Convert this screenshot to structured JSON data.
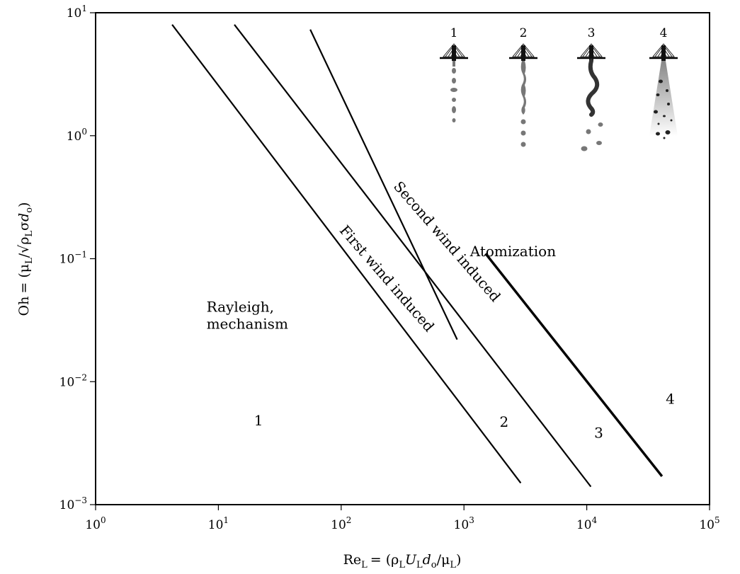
{
  "chart_data": {
    "type": "line",
    "x_scale": "log",
    "y_scale": "log",
    "xlim": [
      1,
      100000
    ],
    "ylim": [
      0.001,
      10
    ],
    "grid": false,
    "xlabel": {
      "lhs": "Re",
      "lhs_sub": "L",
      "eq": "= (",
      "rho": "ρ",
      "rho_sub": "L",
      "U": "U",
      "U_sub": "L",
      "d": "d",
      "d_sub": "o",
      "slash": "/",
      "mu": "μ",
      "mu_sub": "L",
      "close": ")"
    },
    "ylabel": {
      "lhs": "Oh",
      "eq": "= (",
      "mu": "μ",
      "mu_sub": "L",
      "slash": "/",
      "sqrt": "√",
      "rho": "ρ",
      "rho_sub": "L",
      "sigma": "σ",
      "d": "d",
      "d_sub": "o",
      "close": ")"
    },
    "x_ticks": [
      {
        "value": 1,
        "base": "10",
        "exp": "0"
      },
      {
        "value": 10,
        "base": "10",
        "exp": "1"
      },
      {
        "value": 100,
        "base": "10",
        "exp": "2"
      },
      {
        "value": 1000,
        "base": "10",
        "exp": "3"
      },
      {
        "value": 10000,
        "base": "10",
        "exp": "4"
      },
      {
        "value": 100000,
        "base": "10",
        "exp": "5"
      }
    ],
    "y_ticks": [
      {
        "value": 0.001,
        "base": "10",
        "exp": "−3"
      },
      {
        "value": 0.01,
        "base": "10",
        "exp": "−2"
      },
      {
        "value": 0.1,
        "base": "10",
        "exp": "−1"
      },
      {
        "value": 1,
        "base": "10",
        "exp": "0"
      },
      {
        "value": 10,
        "base": "10",
        "exp": "1"
      }
    ],
    "series": [
      {
        "x": [
          4.2,
          2900
        ],
        "y": [
          8.0,
          0.0015
        ]
      },
      {
        "x": [
          13.5,
          10800
        ],
        "y": [
          8.0,
          0.0014
        ]
      },
      {
        "x": [
          56,
          880
        ],
        "y": [
          7.3,
          0.022
        ]
      },
      {
        "x": [
          1500,
          41000
        ],
        "y": [
          0.11,
          0.0017
        ],
        "bold": true
      }
    ],
    "annotations": [
      {
        "id": "rayleigh",
        "lines": [
          "Rayleigh,",
          "mechanism"
        ],
        "x": 8,
        "y": 0.037
      },
      {
        "id": "first-wind",
        "text": "First wind induced",
        "x": 220,
        "y": 0.065,
        "angle": 49
      },
      {
        "id": "second-wind",
        "text": "Second wind induced",
        "x": 680,
        "y": 0.13,
        "angle": 49
      },
      {
        "id": "atomization",
        "text": "Atomization",
        "x": 1120,
        "y": 0.105
      },
      {
        "id": "region-1",
        "text": "1",
        "x": 19.5,
        "y": 0.0044
      },
      {
        "id": "region-2",
        "text": "2",
        "x": 1950,
        "y": 0.0043
      },
      {
        "id": "region-3",
        "text": "3",
        "x": 11500,
        "y": 0.0035
      },
      {
        "id": "region-4",
        "text": "4",
        "x": 44000,
        "y": 0.0066
      }
    ],
    "inset": {
      "labels": [
        "1",
        "2",
        "3",
        "4"
      ]
    }
  }
}
